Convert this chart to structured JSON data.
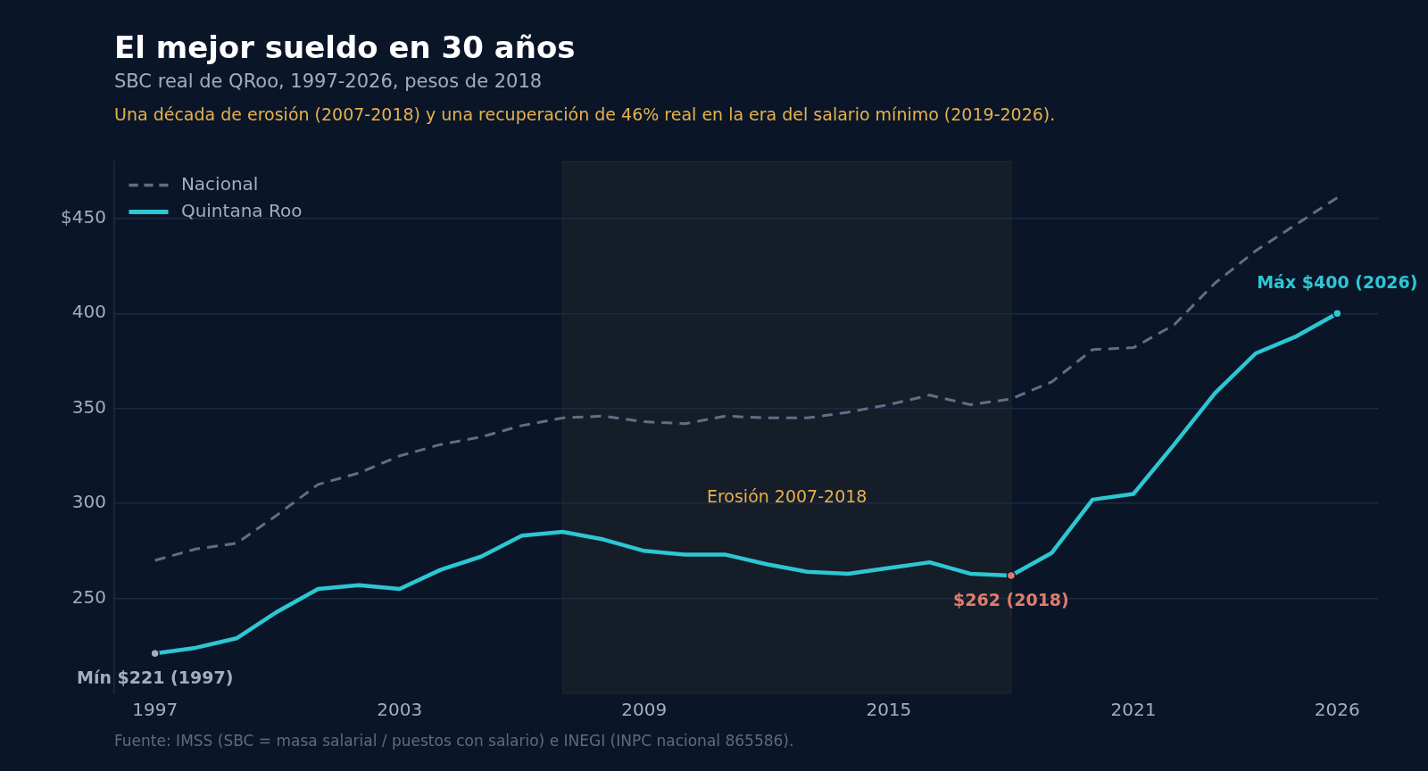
{
  "chart_data": {
    "type": "line",
    "title": "El mejor sueldo en 30 años",
    "subtitle": "SBC real de QRoo, 1997-2026, pesos de 2018",
    "annotations": [
      "Una década de erosión (2007-2018) y una recuperación de 46% real en la era del salario mínimo (2019-2026).",
      {
        "text": "Mín $221 (1997)",
        "x": 1997,
        "y": 221
      },
      {
        "text": "$262 (2018)",
        "x": 2018,
        "y": 262
      },
      {
        "text": "Máx $400 (2026)",
        "x": 2026,
        "y": 400
      },
      "Fuente: IMSS (SBC = masa salarial / puestos con salario) e INEGI (INPC nacional 865586)."
    ],
    "x": [
      1997,
      1998,
      1999,
      2000,
      2001,
      2002,
      2003,
      2004,
      2005,
      2006,
      2007,
      2008,
      2009,
      2010,
      2011,
      2012,
      2013,
      2014,
      2015,
      2016,
      2017,
      2018,
      2019,
      2020,
      2021,
      2022,
      2023,
      2024,
      2025,
      2026
    ],
    "series": [
      {
        "name": "Nacional",
        "color": "#5f6f85",
        "line_style": "dashed",
        "values": [
          270,
          276,
          279,
          294,
          310,
          316,
          325,
          331,
          335,
          341,
          345,
          346,
          343,
          342,
          346,
          345,
          345,
          348,
          352,
          357,
          352,
          355,
          364,
          381,
          382,
          394,
          416,
          433,
          447,
          461
        ]
      },
      {
        "name": "Quintana Roo",
        "color": "#2ec6d3",
        "line_style": "solid",
        "values": [
          221,
          224,
          229,
          243,
          255,
          257,
          255,
          265,
          272,
          283,
          285,
          281,
          275,
          273,
          273,
          268,
          264,
          263,
          266,
          269,
          263,
          262,
          274,
          302,
          305,
          331,
          358,
          379,
          388,
          400
        ]
      },
      {
        "type": "scatter",
        "marker": "circle",
        "x": [
          1997,
          2018,
          2026
        ],
        "colors": [
          "#a0aec0",
          "#e07b6b",
          "#2ec6d3"
        ],
        "values": [
          221,
          262,
          400
        ]
      }
    ],
    "xlim": [
      1996,
      2027
    ],
    "xticks": [
      1997,
      2003,
      2009,
      2015,
      2021,
      2026
    ],
    "ylim": [
      200,
      480
    ],
    "yticks": [
      {
        "value": 450,
        "label": "$450"
      },
      400,
      350,
      300,
      250
    ],
    "bands": [
      {
        "axis": "x",
        "from": 2007,
        "to": 2018,
        "label": "Erosión 2007-2018",
        "color": "#151d29"
      }
    ],
    "grid": "y",
    "legend": "top left",
    "marker": "none"
  }
}
